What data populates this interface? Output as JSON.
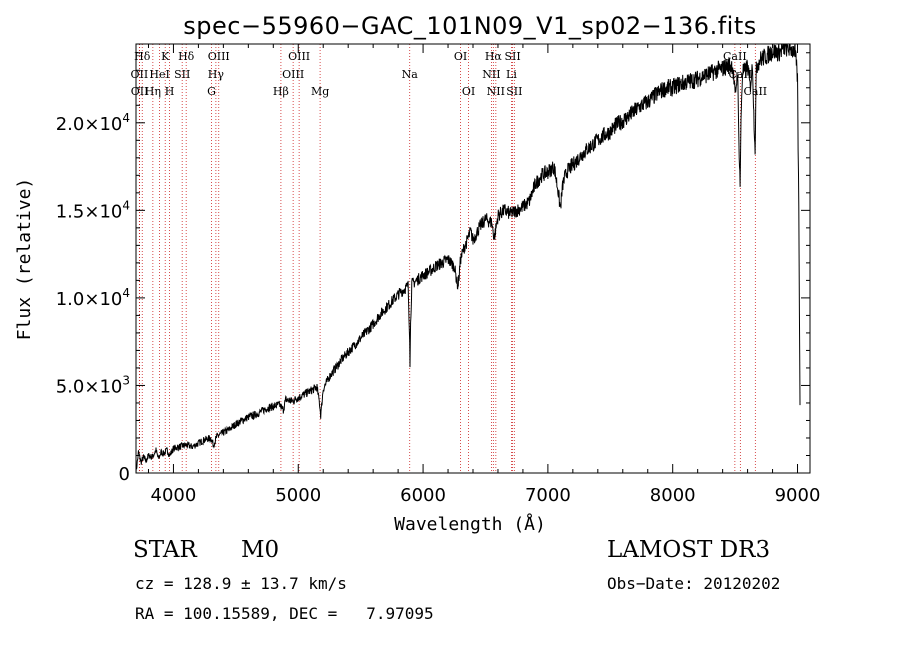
{
  "chart_data": {
    "type": "line",
    "title": "spec−55960−GAC_101N09_V1_sp02−136.fits",
    "xlabel": "Wavelength (Å)",
    "ylabel": "Flux (relative)",
    "xlim": [
      3700,
      9100
    ],
    "ylim": [
      0,
      24500
    ],
    "xticks": [
      {
        "value": 4000,
        "label": "4000"
      },
      {
        "value": 5000,
        "label": "5000"
      },
      {
        "value": 6000,
        "label": "6000"
      },
      {
        "value": 7000,
        "label": "7000"
      },
      {
        "value": 8000,
        "label": "8000"
      },
      {
        "value": 9000,
        "label": "9000"
      }
    ],
    "yticks": [
      {
        "value": 0,
        "mant": "0",
        "exp": ""
      },
      {
        "value": 5000,
        "mant": "5.0×10",
        "exp": "3"
      },
      {
        "value": 10000,
        "mant": "1.0×10",
        "exp": "4"
      },
      {
        "value": 15000,
        "mant": "1.5×10",
        "exp": "4"
      },
      {
        "value": 20000,
        "mant": "2.0×10",
        "exp": "4"
      }
    ],
    "series": [
      {
        "name": "spectrum",
        "x": [
          3700,
          3720,
          3740,
          3760,
          3780,
          3800,
          3830,
          3860,
          3880,
          3900,
          3920,
          3950,
          3970,
          4000,
          4050,
          4100,
          4150,
          4200,
          4250,
          4300,
          4320,
          4350,
          4400,
          4450,
          4500,
          4550,
          4600,
          4650,
          4700,
          4750,
          4800,
          4850,
          4880,
          4900,
          4950,
          5000,
          5050,
          5100,
          5150,
          5170,
          5180,
          5200,
          5250,
          5300,
          5350,
          5400,
          5450,
          5500,
          5550,
          5600,
          5650,
          5700,
          5750,
          5800,
          5850,
          5880,
          5892,
          5895,
          5900,
          5910,
          5950,
          6000,
          6050,
          6100,
          6150,
          6200,
          6250,
          6280,
          6300,
          6330,
          6350,
          6380,
          6400,
          6450,
          6500,
          6550,
          6570,
          6600,
          6650,
          6700,
          6750,
          6800,
          6850,
          6900,
          6950,
          7000,
          7050,
          7080,
          7100,
          7120,
          7150,
          7200,
          7250,
          7300,
          7350,
          7400,
          7450,
          7500,
          7550,
          7600,
          7650,
          7700,
          7750,
          7800,
          7850,
          7900,
          7950,
          8000,
          8050,
          8100,
          8150,
          8200,
          8250,
          8300,
          8350,
          8400,
          8450,
          8480,
          8500,
          8520,
          8530,
          8540,
          8550,
          8560,
          8580,
          8600,
          8620,
          8640,
          8650,
          8660,
          8670,
          8680,
          8700,
          8720,
          8750,
          8800,
          8850,
          8900,
          8950,
          8980,
          9000,
          9010,
          9020
        ],
        "values": [
          0,
          1200,
          600,
          900,
          700,
          1000,
          900,
          1300,
          800,
          1200,
          1100,
          1300,
          1000,
          1400,
          1500,
          1600,
          1500,
          1700,
          1900,
          2000,
          1600,
          2100,
          2300,
          2500,
          2800,
          3000,
          3200,
          3300,
          3500,
          3700,
          3800,
          3900,
          3600,
          4200,
          4100,
          4300,
          4500,
          4700,
          4900,
          4000,
          3300,
          4800,
          5500,
          6000,
          6500,
          6900,
          7300,
          7700,
          8100,
          8500,
          9000,
          9400,
          9800,
          10200,
          10500,
          10700,
          8000,
          6300,
          8500,
          10800,
          11000,
          11300,
          11500,
          11800,
          12000,
          12200,
          11800,
          10600,
          12200,
          12900,
          13200,
          13800,
          13300,
          14000,
          14500,
          14300,
          13400,
          14700,
          15000,
          14800,
          15000,
          15200,
          15500,
          16500,
          17000,
          17200,
          17500,
          16200,
          15100,
          16500,
          17200,
          17600,
          18000,
          18400,
          18700,
          19000,
          19300,
          19500,
          19900,
          20100,
          20400,
          20700,
          21000,
          21200,
          21500,
          21800,
          22000,
          22000,
          22200,
          22300,
          22400,
          22500,
          22700,
          22800,
          23000,
          23100,
          23300,
          23300,
          21500,
          23000,
          19000,
          16500,
          21000,
          23000,
          22900,
          23300,
          22000,
          23300,
          20500,
          18500,
          23000,
          23400,
          23600,
          23700,
          23800,
          24100,
          24000,
          24300,
          24200,
          24100,
          22500,
          15000,
          4000
        ]
      }
    ],
    "lines": [
      {
        "name": "Hδ",
        "x": 3750,
        "row": 0
      },
      {
        "name": "OII",
        "x": 3727,
        "row": 1
      },
      {
        "name": "OII",
        "x": 3729,
        "row": 2
      },
      {
        "name": "K",
        "x": 3934,
        "row": 0
      },
      {
        "name": "Hδ",
        "x": 4102,
        "row": 0
      },
      {
        "name": "HeI",
        "x": 3889,
        "row": 1
      },
      {
        "name": "Hη",
        "x": 3835,
        "row": 2
      },
      {
        "name": "SII",
        "x": 4070,
        "row": 1
      },
      {
        "name": "H",
        "x": 3969,
        "row": 2
      },
      {
        "name": "OIII",
        "x": 4363,
        "row": 0
      },
      {
        "name": "Hγ",
        "x": 4340,
        "row": 1
      },
      {
        "name": "G",
        "x": 4305,
        "row": 2
      },
      {
        "name": "Hβ",
        "x": 4861,
        "row": 2
      },
      {
        "name": "OIII",
        "x": 4959,
        "row": 1
      },
      {
        "name": "OIII",
        "x": 5007,
        "row": 0
      },
      {
        "name": "Mg",
        "x": 5175,
        "row": 2
      },
      {
        "name": "Na",
        "x": 5893,
        "row": 1
      },
      {
        "name": "OI",
        "x": 6300,
        "row": 0
      },
      {
        "name": "OI",
        "x": 6364,
        "row": 2
      },
      {
        "name": "Hα",
        "x": 6563,
        "row": 0
      },
      {
        "name": "NII",
        "x": 6548,
        "row": 1
      },
      {
        "name": "NII",
        "x": 6583,
        "row": 2
      },
      {
        "name": "SII",
        "x": 6717,
        "row": 0
      },
      {
        "name": "Li",
        "x": 6708,
        "row": 1
      },
      {
        "name": "SII",
        "x": 6731,
        "row": 2
      },
      {
        "name": "CaII",
        "x": 8498,
        "row": 0
      },
      {
        "name": "CaII",
        "x": 8542,
        "row": 1
      },
      {
        "name": "CaII",
        "x": 8662,
        "row": 2
      }
    ]
  },
  "info": {
    "class_label": "STAR",
    "subclass": "M0",
    "survey": "LAMOST DR3",
    "cz": "cz = 128.9 ± 13.7 km/s",
    "obs_date": "Obs−Date: 20120202",
    "coords": "RA = 100.15589, DEC =   7.97095"
  },
  "colors": {
    "line_marker": "#cc2222",
    "spectrum": "#000000",
    "axis": "#000000"
  }
}
